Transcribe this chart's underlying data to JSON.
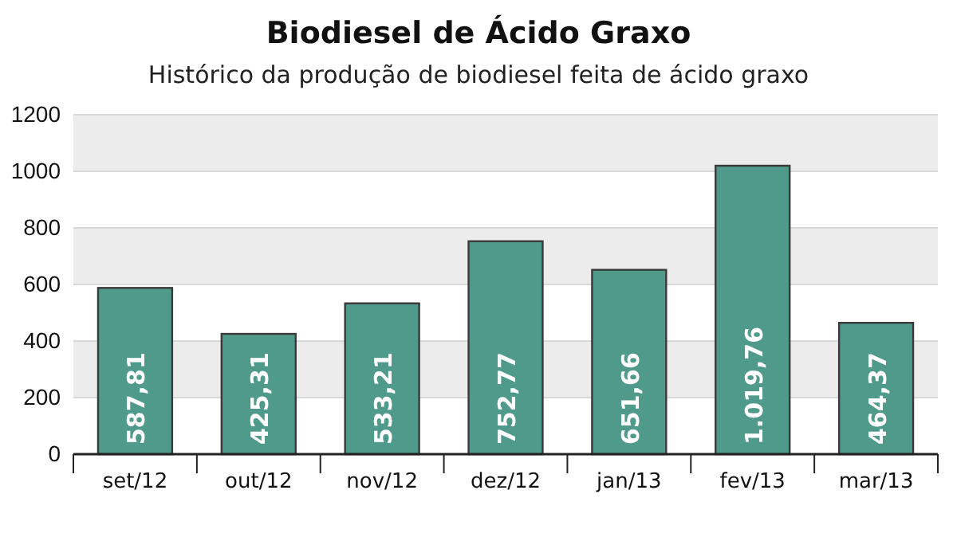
{
  "chart_data": {
    "type": "bar",
    "title": "Biodiesel de Ácido Graxo",
    "subtitle": "Histórico da produção de biodiesel feita de ácido graxo",
    "categories": [
      "set/12",
      "out/12",
      "nov/12",
      "dez/12",
      "jan/13",
      "fev/13",
      "mar/13"
    ],
    "values": [
      587.81,
      425.31,
      533.21,
      752.77,
      651.66,
      1019.76,
      464.37
    ],
    "value_labels": [
      "587,81",
      "425,31",
      "533,21",
      "752,77",
      "651,66",
      "1.019,76",
      "464,37"
    ],
    "color": "#4f9a8a",
    "ylim": [
      0,
      1200
    ],
    "yticks": [
      0,
      200,
      400,
      600,
      800,
      1000,
      1200
    ],
    "grid": "y"
  }
}
